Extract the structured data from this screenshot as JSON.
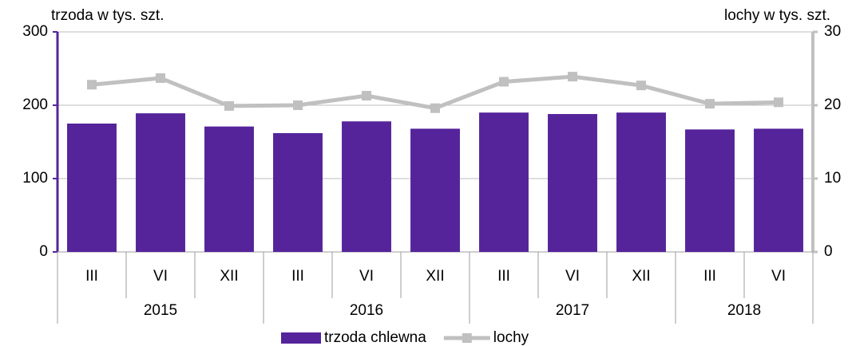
{
  "chart_data": {
    "type": "bar_line",
    "y_axis_label": "trzoda w tys. szt.",
    "y2_axis_label": "lochy w tys. szt.",
    "category_groups": [
      {
        "label": "2015",
        "categories": [
          "III",
          "VI",
          "XII"
        ]
      },
      {
        "label": "2016",
        "categories": [
          "III",
          "VI",
          "XII"
        ]
      },
      {
        "label": "2017",
        "categories": [
          "III",
          "VI",
          "XII"
        ]
      },
      {
        "label": "2018",
        "categories": [
          "III",
          "VI"
        ]
      }
    ],
    "series": [
      {
        "name": "trzoda chlewna",
        "type": "bar",
        "color": "#55249b",
        "axis": "y",
        "values": [
          175,
          189,
          171,
          162,
          178,
          168,
          190,
          188,
          190,
          167,
          168
        ]
      },
      {
        "name": "lochy",
        "type": "line",
        "color": "#c0c0c0",
        "axis": "y2",
        "values": [
          22.8,
          23.7,
          19.9,
          20.0,
          21.3,
          19.6,
          23.2,
          23.9,
          22.7,
          20.2,
          20.4
        ]
      }
    ],
    "ylim": [
      0,
      300
    ],
    "yticks": [
      0,
      100,
      200,
      300
    ],
    "y2lim": [
      0,
      30
    ],
    "y2ticks": [
      0,
      10,
      20,
      30
    ],
    "grid": true
  }
}
